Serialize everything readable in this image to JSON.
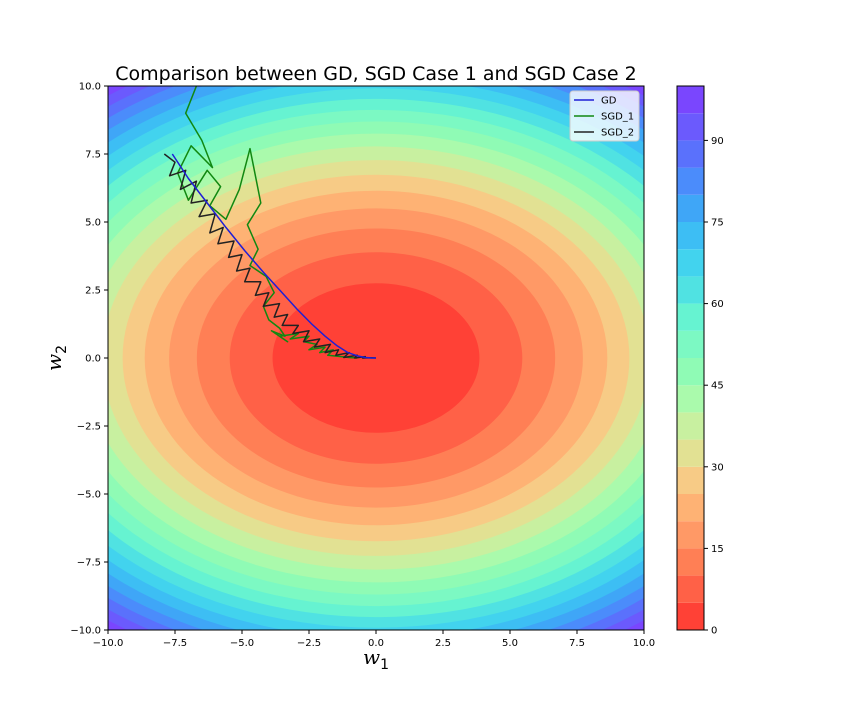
{
  "chart_data": {
    "type": "contour",
    "title": "Comparison between GD, SGD Case 1 and SGD Case 2",
    "xlabel": "w",
    "xlabel_sub": "1",
    "ylabel": "w",
    "ylabel_sub": "2",
    "xlim": [
      -10,
      10
    ],
    "ylim": [
      -10,
      10
    ],
    "x_ticks": [
      -10.0,
      -7.5,
      -5.0,
      -2.5,
      0.0,
      2.5,
      5.0,
      7.5,
      10.0
    ],
    "y_ticks": [
      -10.0,
      -7.5,
      -5.0,
      -2.5,
      0.0,
      2.5,
      5.0,
      7.5,
      10.0
    ],
    "x_tick_labels": [
      "−10.0",
      "−7.5",
      "−5.0",
      "−2.5",
      "0.0",
      "2.5",
      "5.0",
      "7.5",
      "10.0"
    ],
    "y_tick_labels": [
      "−10.0",
      "−7.5",
      "−5.0",
      "−2.5",
      "0.0",
      "2.5",
      "5.0",
      "7.5",
      "10.0"
    ],
    "grid": false,
    "legend_position": "upper-right",
    "surface": {
      "center": [
        0,
        0
      ],
      "x_semi_axis_level_5": 3.86,
      "y_semi_axis_level_5": 2.75
    },
    "levels": [
      0,
      5,
      10,
      15,
      20,
      25,
      30,
      35,
      40,
      45,
      50,
      55,
      60,
      65,
      70,
      75,
      80,
      85,
      90,
      95,
      100
    ],
    "level_colors": [
      "#ff4136",
      "#ff6147",
      "#ff7f55",
      "#ff9966",
      "#feb274",
      "#f7cb86",
      "#e2e193",
      "#c8f0a0",
      "#aafaac",
      "#8ffbb5",
      "#7cf9c3",
      "#66f3d1",
      "#50e2e2",
      "#42d3ee",
      "#3dbef4",
      "#3fa6f7",
      "#4b8cfb",
      "#5a71fc",
      "#6b5afd",
      "#7a46fe"
    ],
    "colorbar": {
      "ticks": [
        0,
        15,
        30,
        45,
        60,
        75,
        90
      ],
      "tick_labels": [
        "0",
        "15",
        "30",
        "45",
        "60",
        "75",
        "90"
      ],
      "range": [
        0,
        100
      ]
    },
    "series": [
      {
        "name": "GD",
        "color": "#1f1fd6",
        "x": [
          -7.6,
          -7.0,
          -6.3,
          -5.6,
          -4.9,
          -4.2,
          -3.55,
          -2.95,
          -2.4,
          -1.9,
          -1.45,
          -1.05,
          -0.7,
          -0.4,
          -0.15,
          0.0
        ],
        "y": [
          7.5,
          6.6,
          5.7,
          4.8,
          3.95,
          3.15,
          2.45,
          1.8,
          1.25,
          0.8,
          0.45,
          0.2,
          0.08,
          0.02,
          0.0,
          0.0
        ]
      },
      {
        "name": "SGD_1",
        "color": "#118811",
        "x": [
          -6.7,
          -7.1,
          -6.5,
          -6.1,
          -6.9,
          -7.4,
          -7.0,
          -6.3,
          -5.8,
          -6.2,
          -5.6,
          -5.1,
          -4.7,
          -4.3,
          -4.8,
          -4.4,
          -4.7,
          -4.1,
          -3.8,
          -4.2,
          -4.0,
          -3.6,
          -3.4,
          -3.9,
          -3.3,
          -3.6,
          -2.9,
          -3.2,
          -2.5,
          -2.7,
          -2.2,
          -2.5,
          -1.9,
          -2.1,
          -1.6,
          -1.8,
          -1.3,
          -1.0,
          -0.7
        ],
        "y": [
          10.0,
          9.0,
          8.0,
          7.0,
          7.8,
          6.8,
          5.8,
          6.9,
          6.3,
          5.6,
          5.1,
          6.2,
          7.7,
          5.7,
          4.9,
          4.0,
          3.4,
          3.0,
          2.4,
          1.9,
          1.4,
          1.1,
          0.8,
          1.0,
          0.6,
          0.8,
          0.9,
          0.7,
          0.8,
          0.6,
          0.5,
          0.3,
          0.4,
          0.2,
          0.3,
          0.1,
          0.05,
          0.02,
          0.0
        ]
      },
      {
        "name": "SGD_2",
        "color": "#222222",
        "x": [
          -7.9,
          -7.5,
          -7.7,
          -7.1,
          -7.3,
          -6.7,
          -6.9,
          -6.3,
          -6.6,
          -6.0,
          -6.2,
          -5.7,
          -5.9,
          -5.3,
          -5.5,
          -5.0,
          -5.2,
          -4.7,
          -4.9,
          -4.3,
          -4.5,
          -4.0,
          -4.2,
          -3.6,
          -3.8,
          -3.3,
          -3.5,
          -2.9,
          -3.1,
          -2.5,
          -2.7,
          -2.1,
          -2.3,
          -1.7,
          -1.9,
          -1.4,
          -1.5,
          -1.0,
          -1.2,
          -0.7,
          -0.8,
          -0.4,
          -0.5,
          -0.2,
          0.0
        ],
        "y": [
          7.5,
          7.2,
          6.7,
          6.9,
          6.2,
          6.5,
          5.7,
          5.8,
          5.2,
          5.3,
          4.6,
          4.8,
          4.2,
          4.3,
          3.7,
          3.8,
          3.2,
          3.3,
          2.8,
          2.8,
          2.3,
          2.4,
          1.9,
          2.0,
          1.5,
          1.6,
          1.2,
          1.2,
          0.9,
          1.0,
          0.6,
          0.7,
          0.4,
          0.5,
          0.2,
          0.3,
          0.1,
          0.2,
          0.02,
          0.1,
          0.0,
          0.05,
          0.0,
          0.01,
          0.0
        ]
      }
    ]
  }
}
